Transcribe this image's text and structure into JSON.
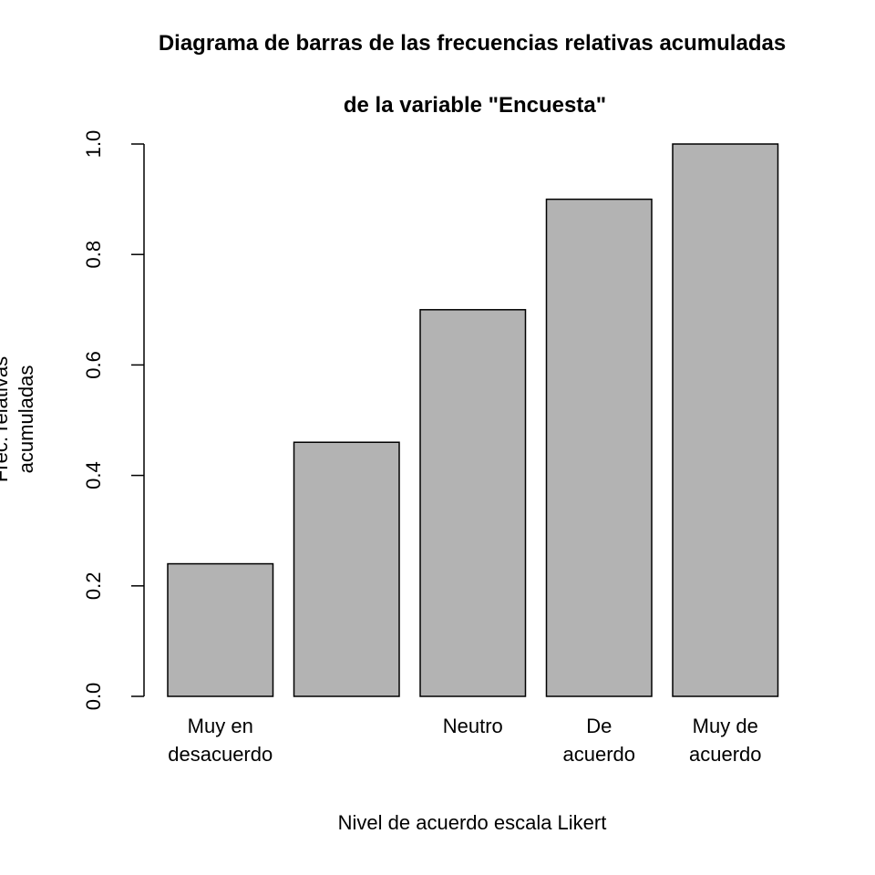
{
  "chart_data": {
    "type": "bar",
    "title_lines": [
      "Diagrama de barras de las frecuencias relativas acumuladas",
      "de la variable \"Encuesta\""
    ],
    "xlabel": "Nivel de acuerdo escala Likert",
    "ylabel_lines": [
      "Frec. relativas",
      "acumuladas"
    ],
    "categories": [
      [
        "Muy en",
        "desacuerdo"
      ],
      [],
      [
        "Neutro"
      ],
      [
        "De",
        "acuerdo"
      ],
      [
        "Muy de",
        "acuerdo"
      ]
    ],
    "values": [
      0.24,
      0.46,
      0.7,
      0.9,
      1.0
    ],
    "ylim": [
      0,
      1
    ],
    "yticks": [
      "0.0",
      "0.2",
      "0.4",
      "0.6",
      "0.8",
      "1.0"
    ],
    "bar_color": "#b3b3b3",
    "border_color": "#000000",
    "grid": false
  }
}
